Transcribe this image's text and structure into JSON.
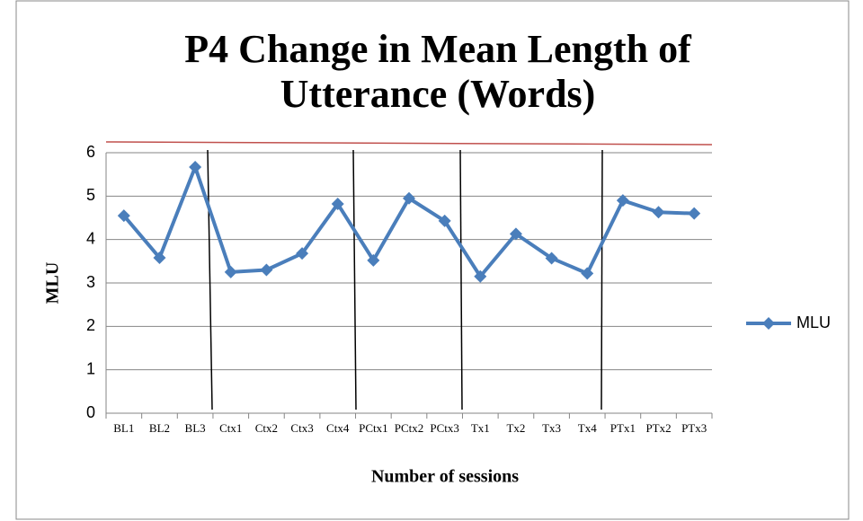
{
  "chart_data": {
    "type": "line",
    "title": "P4 Change in Mean Length of Utterance (Words)",
    "x_label": "Number of sessions",
    "y_label": "MLU",
    "categories": [
      "BL1",
      "BL2",
      "BL3",
      "Ctx1",
      "Ctx2",
      "Ctx3",
      "Ctx4",
      "PCtx1",
      "PCtx2",
      "PCtx3",
      "Tx1",
      "Tx2",
      "Tx3",
      "Tx4",
      "PTx1",
      "PTx2",
      "PTx3"
    ],
    "series": [
      {
        "name": "MLU",
        "color": "#4a7ebb",
        "values": [
          4.55,
          3.58,
          5.67,
          3.25,
          3.3,
          3.68,
          4.82,
          3.52,
          4.95,
          4.43,
          3.15,
          4.13,
          3.57,
          3.22,
          4.9,
          4.63,
          4.6
        ]
      }
    ],
    "ylim": [
      0,
      6
    ],
    "yticks": [
      0,
      1,
      2,
      3,
      4,
      5,
      6
    ],
    "grid": true,
    "legend": "right"
  }
}
